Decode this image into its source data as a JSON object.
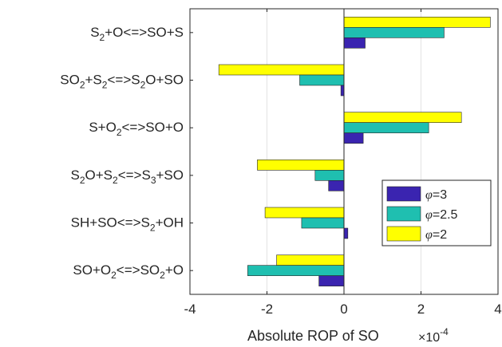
{
  "chart_data": {
    "type": "bar",
    "orientation": "horizontal",
    "categories": [
      {
        "parts": [
          [
            "S",
            ""
          ],
          [
            "2",
            "sub"
          ],
          [
            "+O<=>SO+S",
            ""
          ]
        ]
      },
      {
        "parts": [
          [
            "SO",
            ""
          ],
          [
            "2",
            "sub"
          ],
          [
            "+S",
            ""
          ],
          [
            "2",
            "sub"
          ],
          [
            "<=>S",
            ""
          ],
          [
            "2",
            "sub"
          ],
          [
            "O+SO",
            ""
          ]
        ]
      },
      {
        "parts": [
          [
            "S+O",
            ""
          ],
          [
            "2",
            "sub"
          ],
          [
            "<=>SO+O",
            ""
          ]
        ]
      },
      {
        "parts": [
          [
            "S",
            ""
          ],
          [
            "2",
            "sub"
          ],
          [
            "O+S",
            ""
          ],
          [
            "2",
            "sub"
          ],
          [
            "<=>S",
            ""
          ],
          [
            "3",
            "sub"
          ],
          [
            "+SO",
            ""
          ]
        ]
      },
      {
        "parts": [
          [
            "SH+SO<=>S",
            ""
          ],
          [
            "2",
            "sub"
          ],
          [
            "+OH",
            ""
          ]
        ]
      },
      {
        "parts": [
          [
            "SO+O",
            ""
          ],
          [
            "2",
            "sub"
          ],
          [
            "<=>SO",
            ""
          ],
          [
            "2",
            "sub"
          ],
          [
            "+O",
            ""
          ]
        ]
      }
    ],
    "series": [
      {
        "symbol": "φ",
        "name": "=3",
        "color": "#3a24b0",
        "values": [
          0.55,
          -0.08,
          0.5,
          -0.4,
          0.1,
          -0.65
        ]
      },
      {
        "symbol": "φ",
        "name": "=2.5",
        "color": "#1fbfb0",
        "values": [
          2.6,
          -1.15,
          2.2,
          -0.75,
          -1.1,
          -2.5
        ]
      },
      {
        "symbol": "φ",
        "name": "=2",
        "color": "#ffff00",
        "values": [
          3.8,
          -3.25,
          3.05,
          -2.25,
          -2.05,
          -1.75
        ]
      }
    ],
    "xlabel": "Absolute ROP of SO",
    "x_exponent": {
      "base": "×10",
      "exp": "-4"
    },
    "xlim": [
      -4,
      4
    ],
    "xticks": [
      -4,
      -2,
      0,
      2,
      4
    ],
    "xtick_labels": [
      "-4",
      "-2",
      "0",
      "2",
      "4"
    ],
    "grid": "vertical",
    "legend_position": "lower-right"
  }
}
